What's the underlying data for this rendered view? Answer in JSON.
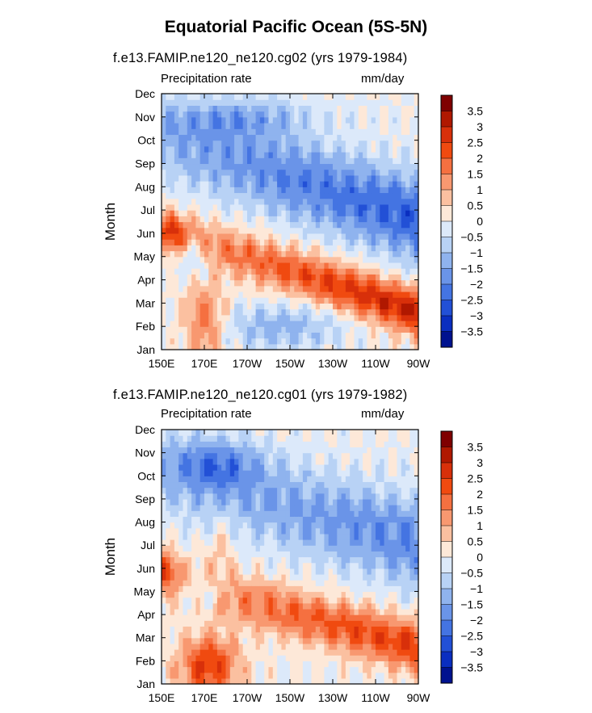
{
  "figure": {
    "title": "Equatorial Pacific Ocean (5S-5N)"
  },
  "chart_data": [
    {
      "type": "heatmap",
      "title": "f.e13.FAMIP.ne120_ne120.cg02 (yrs 1979-1984)",
      "subtitle_left": "Precipitation rate",
      "subtitle_right": "mm/day",
      "xlabel": "",
      "ylabel": "Month",
      "x_ticks": [
        "150E",
        "170E",
        "170W",
        "150W",
        "130W",
        "110W",
        "90W"
      ],
      "y_ticks": [
        "Jan",
        "Feb",
        "Mar",
        "Apr",
        "May",
        "Jun",
        "Jul",
        "Aug",
        "Sep",
        "Oct",
        "Nov",
        "Dec"
      ],
      "colorbar_labels": [
        "3.5",
        "3",
        "2.5",
        "2",
        "1.5",
        "1",
        "0.5",
        "0",
        "-0.5",
        "-1",
        "-1.5",
        "-2",
        "-2.5",
        "-3",
        "-3.5"
      ],
      "lon_range": [
        150,
        270
      ],
      "month_range": [
        1,
        12
      ]
    },
    {
      "type": "heatmap",
      "title": "f.e13.FAMIP.ne120_ne120.cg01 (yrs 1979-1982)",
      "subtitle_left": "Precipitation rate",
      "subtitle_right": "mm/day",
      "xlabel": "",
      "ylabel": "Month",
      "x_ticks": [
        "150E",
        "170E",
        "170W",
        "150W",
        "130W",
        "110W",
        "90W"
      ],
      "y_ticks": [
        "Jan",
        "Feb",
        "Mar",
        "Apr",
        "May",
        "Jun",
        "Jul",
        "Aug",
        "Sep",
        "Oct",
        "Nov",
        "Dec"
      ],
      "colorbar_labels": [
        "3.5",
        "3",
        "2.5",
        "2",
        "1.5",
        "1",
        "0.5",
        "0",
        "-0.5",
        "-1",
        "-1.5",
        "-2",
        "-2.5",
        "-3",
        "-3.5"
      ],
      "lon_range": [
        150,
        270
      ],
      "month_range": [
        1,
        12
      ]
    }
  ],
  "colors": {
    "scale": [
      "#7f0000",
      "#b01800",
      "#d8300a",
      "#f04a10",
      "#f57040",
      "#f89870",
      "#fbc0a0",
      "#fde8d8",
      "#dce9fa",
      "#b8d2f5",
      "#8fb3ee",
      "#6a94e8",
      "#4474e2",
      "#2250d6",
      "#0a2ec0",
      "#00128f"
    ]
  }
}
